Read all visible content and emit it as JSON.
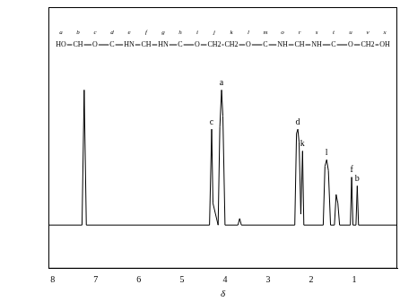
{
  "chart_data": {
    "type": "line",
    "x_label": "δ",
    "xlim": [
      8.1,
      0
    ],
    "xticks": [
      8,
      7,
      6,
      5,
      4,
      3,
      2,
      1
    ],
    "ylim": [
      -0.2,
      1
    ],
    "tick_labels": "x",
    "grid": false,
    "color": "#000000",
    "x": [
      8.1,
      7.32,
      7.27,
      7.22,
      4.36,
      4.31,
      4.28,
      4.16,
      4.12,
      4.08,
      4.05,
      4.0,
      3.7,
      3.66,
      3.62,
      2.38,
      2.34,
      2.31,
      2.28,
      2.24,
      2.2,
      2.17,
      1.72,
      1.68,
      1.64,
      1.6,
      1.55,
      1.46,
      1.42,
      1.38,
      1.34,
      1.09,
      1.06,
      1.03,
      0.96,
      0.93,
      0.9,
      0
    ],
    "values": [
      0,
      0,
      0.62,
      0,
      0,
      0.44,
      0.1,
      0,
      0.45,
      0.62,
      0.5,
      0,
      0,
      0.03,
      0,
      0,
      0.42,
      0.44,
      0.38,
      0.05,
      0.34,
      0,
      0,
      0.27,
      0.3,
      0.25,
      0,
      0,
      0.14,
      0.1,
      0,
      0,
      0.22,
      0,
      0,
      0.18,
      0,
      0
    ],
    "annotations": [
      {
        "text": "c",
        "x": 4.31,
        "y": 0.44
      },
      {
        "text": "a",
        "x": 4.08,
        "y": 0.62
      },
      {
        "text": "d",
        "x": 2.31,
        "y": 0.44
      },
      {
        "text": "k",
        "x": 2.2,
        "y": 0.34
      },
      {
        "text": "l",
        "x": 1.64,
        "y": 0.3
      },
      {
        "text": "f",
        "x": 1.06,
        "y": 0.22
      },
      {
        "text": "b",
        "x": 0.93,
        "y": 0.18
      }
    ],
    "structure": {
      "groups": [
        "HO",
        "CH",
        "O",
        "C",
        "HN",
        "CH",
        "HN",
        "C",
        "O",
        "CH2",
        "CH2",
        "O",
        "C",
        "NH",
        "CH",
        "NH",
        "C",
        "O",
        "CH2",
        "OH"
      ],
      "atom_labels": [
        "a",
        "b",
        "c",
        "d",
        "e",
        "f",
        "g",
        "h",
        "i",
        "j",
        "k",
        "l",
        "m",
        "o",
        "r",
        "s",
        "t",
        "u",
        "v",
        "x"
      ]
    }
  }
}
